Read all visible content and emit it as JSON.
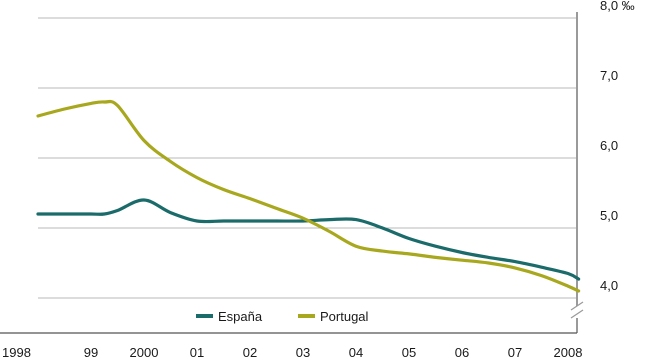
{
  "chart_data": {
    "type": "line",
    "x": [
      1998,
      1998.5,
      1999,
      1999.25,
      1999.5,
      2000,
      2000.5,
      2001,
      2001.5,
      2002,
      2002.5,
      2003,
      2003.5,
      2004,
      2004.5,
      2005,
      2005.5,
      2006,
      2006.5,
      2007,
      2007.5,
      2008,
      2008.2
    ],
    "x_ticks": [
      1998,
      1999,
      2000,
      2001,
      2002,
      2003,
      2004,
      2005,
      2006,
      2007,
      2008
    ],
    "x_tick_labels": [
      "1998",
      "99",
      "2000",
      "01",
      "02",
      "03",
      "04",
      "05",
      "06",
      "07",
      "2008"
    ],
    "y_ticks": [
      4.0,
      5.0,
      6.0,
      7.0,
      8.0
    ],
    "y_tick_labels": [
      "4,0",
      "5,0",
      "6,0",
      "7,0",
      "8,0 ‰"
    ],
    "ylim": [
      4.0,
      8.0
    ],
    "xlim": [
      1998,
      2008.3
    ],
    "y_axis_side": "right",
    "grid": true,
    "legend_position": "bottom-center",
    "title": "",
    "xlabel": "",
    "ylabel": "",
    "series": [
      {
        "name": "España",
        "color": "#1b6b6b",
        "values": [
          5.2,
          5.2,
          5.2,
          5.2,
          5.25,
          5.4,
          5.22,
          5.1,
          5.1,
          5.1,
          5.1,
          5.1,
          5.12,
          5.12,
          5.0,
          4.85,
          4.74,
          4.65,
          4.58,
          4.52,
          4.44,
          4.35,
          4.27
        ]
      },
      {
        "name": "Portugal",
        "color": "#a8a81e",
        "values": [
          6.6,
          6.7,
          6.78,
          6.8,
          6.75,
          6.25,
          5.95,
          5.72,
          5.55,
          5.42,
          5.28,
          5.14,
          4.95,
          4.74,
          4.67,
          4.63,
          4.58,
          4.54,
          4.5,
          4.43,
          4.32,
          4.17,
          4.1
        ]
      }
    ]
  }
}
